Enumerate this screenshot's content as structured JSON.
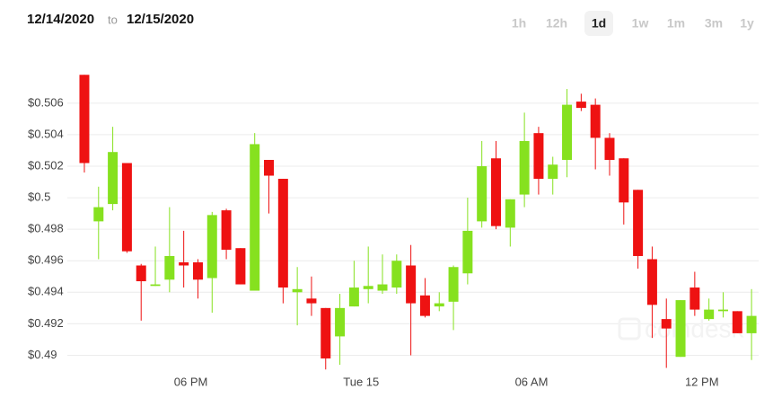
{
  "chart_data": {
    "type": "candlestick",
    "date_from": "12/14/2020",
    "range_separator": "to",
    "date_to": "12/15/2020",
    "ranges": [
      "1h",
      "12h",
      "1d",
      "1w",
      "1m",
      "3m",
      "1y"
    ],
    "selected_range": "1d",
    "watermark": "coindesk",
    "up_color": "#86e11f",
    "down_color": "#ee1212",
    "grid": true,
    "x": [
      14.25,
      14.75,
      15.25,
      15.75,
      16.25,
      16.75,
      17.25,
      17.75,
      18.25,
      18.75,
      19.25,
      19.75,
      20.25,
      20.75,
      21.25,
      21.75,
      22.25,
      22.75,
      23.25,
      23.75,
      24.25,
      24.75,
      25.25,
      25.75,
      26.25,
      26.75,
      27.25,
      27.75,
      28.25,
      28.75,
      29.25,
      29.75,
      30.25,
      30.75,
      31.25,
      31.75,
      32.25,
      32.75,
      33.25,
      33.75,
      34.25,
      34.75,
      35.25,
      35.75,
      36.25,
      36.75,
      37.25,
      37.75
    ],
    "open": [
      0.5078,
      0.4985,
      0.4996,
      0.5022,
      0.4957,
      0.4944,
      0.4948,
      0.4959,
      0.4959,
      0.4949,
      0.4992,
      0.4968,
      0.4941,
      0.5024,
      0.5012,
      0.494,
      0.4936,
      0.493,
      0.4912,
      0.4931,
      0.4942,
      0.4941,
      0.4943,
      0.4957,
      0.4938,
      0.4931,
      0.4934,
      0.4952,
      0.4985,
      0.5025,
      0.4981,
      0.5002,
      0.5041,
      0.5012,
      0.5024,
      0.5061,
      0.5059,
      0.5038,
      0.5025,
      0.5005,
      0.4961,
      0.4923,
      0.4899,
      0.4943,
      0.4923,
      0.4928,
      0.4928,
      0.4914
    ],
    "high": [
      0.5078,
      0.5007,
      0.5045,
      0.5022,
      0.4958,
      0.4969,
      0.4994,
      0.4979,
      0.4961,
      0.4991,
      0.4993,
      0.4968,
      0.5041,
      0.5024,
      0.5012,
      0.4956,
      0.495,
      0.493,
      0.4939,
      0.496,
      0.4969,
      0.4964,
      0.4964,
      0.497,
      0.4949,
      0.494,
      0.4957,
      0.5,
      0.5036,
      0.5036,
      0.4999,
      0.5054,
      0.5045,
      0.5026,
      0.5069,
      0.5066,
      0.5063,
      0.5041,
      0.5025,
      0.5005,
      0.4969,
      0.4936,
      0.4935,
      0.4953,
      0.4936,
      0.494,
      0.4928,
      0.4942
    ],
    "low": [
      0.5016,
      0.4961,
      0.4992,
      0.4965,
      0.4922,
      0.4944,
      0.494,
      0.4943,
      0.4936,
      0.4927,
      0.4961,
      0.4945,
      0.4941,
      0.499,
      0.4933,
      0.4919,
      0.4925,
      0.4891,
      0.4894,
      0.4931,
      0.4933,
      0.4939,
      0.4939,
      0.49,
      0.4924,
      0.4928,
      0.4916,
      0.4945,
      0.4981,
      0.498,
      0.4969,
      0.4994,
      0.5002,
      0.5002,
      0.5013,
      0.5055,
      0.5018,
      0.5014,
      0.4983,
      0.4955,
      0.4911,
      0.4892,
      0.4899,
      0.4925,
      0.4922,
      0.4924,
      0.4914,
      0.4897
    ],
    "close": [
      0.5022,
      0.4994,
      0.5029,
      0.4966,
      0.4947,
      0.4945,
      0.4963,
      0.4957,
      0.4948,
      0.4989,
      0.4967,
      0.4945,
      0.5034,
      0.5014,
      0.4943,
      0.4942,
      0.4933,
      0.4898,
      0.493,
      0.4943,
      0.4944,
      0.4945,
      0.496,
      0.4933,
      0.4925,
      0.4933,
      0.4956,
      0.4979,
      0.502,
      0.4982,
      0.4999,
      0.5036,
      0.5012,
      0.5021,
      0.5059,
      0.5057,
      0.5038,
      0.5024,
      0.4997,
      0.4963,
      0.4932,
      0.4917,
      0.4935,
      0.4929,
      0.4929,
      0.4929,
      0.4914,
      0.4925
    ],
    "xlim": [
      13.65,
      38.0
    ],
    "xticks": [
      {
        "value": 18,
        "label": "06 PM"
      },
      {
        "value": 24,
        "label": "Tue 15"
      },
      {
        "value": 30,
        "label": "06 AM"
      },
      {
        "value": 36,
        "label": "12 PM"
      }
    ],
    "ylim": [
      0.489,
      0.5085
    ],
    "yticks": [
      {
        "value": 0.49,
        "label": "$0.49"
      },
      {
        "value": 0.492,
        "label": "$0.492"
      },
      {
        "value": 0.494,
        "label": "$0.494"
      },
      {
        "value": 0.496,
        "label": "$0.496"
      },
      {
        "value": 0.498,
        "label": "$0.498"
      },
      {
        "value": 0.5,
        "label": "$0.5"
      },
      {
        "value": 0.502,
        "label": "$0.502"
      },
      {
        "value": 0.504,
        "label": "$0.504"
      },
      {
        "value": 0.506,
        "label": "$0.506"
      }
    ]
  }
}
